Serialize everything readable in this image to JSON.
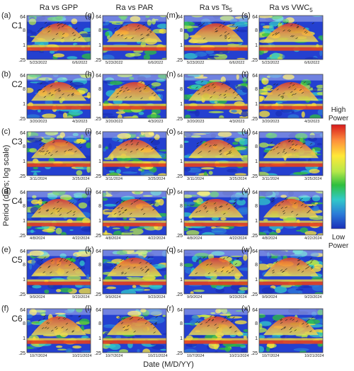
{
  "chart_data": {
    "type": "heatmap",
    "description_free": true,
    "y_axis_label": "Period (days; log scale)",
    "x_axis_label": "Date (M/D/YY)",
    "y_ticks": [
      "64",
      "8",
      "1",
      ".25"
    ],
    "y_scale": "log",
    "ylim": [
      0.25,
      64
    ],
    "columns": [
      {
        "title": "Ra vs GPP",
        "title_parts": [
          {
            "t": "Ra vs GPP"
          }
        ]
      },
      {
        "title": "Ra vs PAR",
        "title_parts": [
          {
            "t": "Ra vs PAR"
          }
        ]
      },
      {
        "title": "Ra vs Ts5",
        "title_parts": [
          {
            "t": "Ra vs Ts"
          },
          {
            "t": "5",
            "sub": true
          }
        ]
      },
      {
        "title": "Ra vs VWC5",
        "title_parts": [
          {
            "t": "Ra vs VWC"
          },
          {
            "t": "5",
            "sub": true
          }
        ]
      }
    ],
    "rows": [
      {
        "label": "C1",
        "dates": [
          "5/23/2022",
          "6/6/2022"
        ]
      },
      {
        "label": "C2",
        "dates": [
          "3/20/2023",
          "4/3/2023"
        ]
      },
      {
        "label": "C3",
        "dates": [
          "3/11/2024",
          "3/25/2024"
        ]
      },
      {
        "label": "C4",
        "dates": [
          "4/8/2024",
          "4/22/2024"
        ]
      },
      {
        "label": "C5",
        "dates": [
          "9/9/2024",
          "9/23/2024"
        ]
      },
      {
        "label": "C6",
        "dates": [
          "10/7/2024",
          "10/21/2024"
        ]
      }
    ],
    "panel_letters": [
      [
        "(a)",
        "(g)",
        "(m)",
        "(s)"
      ],
      [
        "(b)",
        "(h)",
        "(n)",
        "(t)"
      ],
      [
        "(c)",
        "(i)",
        "(o)",
        "(u)"
      ],
      [
        "(d)",
        "(j)",
        "(p)",
        "(v)"
      ],
      [
        "(e)",
        "(k)",
        "(q)",
        "(w)"
      ],
      [
        "(f)",
        "(l)",
        "(r)",
        "(x)"
      ]
    ],
    "colorbar": {
      "top_label": [
        "High",
        "Power"
      ],
      "bottom_label": [
        "Low",
        "Power"
      ],
      "colors": [
        "#d7191c",
        "#fd8d3c",
        "#ffe838",
        "#b6e84a",
        "#2fbf3f",
        "#31c9c9",
        "#2b7bd8",
        "#1a2fb8"
      ]
    },
    "colors": {
      "background_low": "#1f3fd6",
      "mid": "#2fbf3f",
      "high": "#e02020",
      "arrows": "#222222"
    }
  }
}
